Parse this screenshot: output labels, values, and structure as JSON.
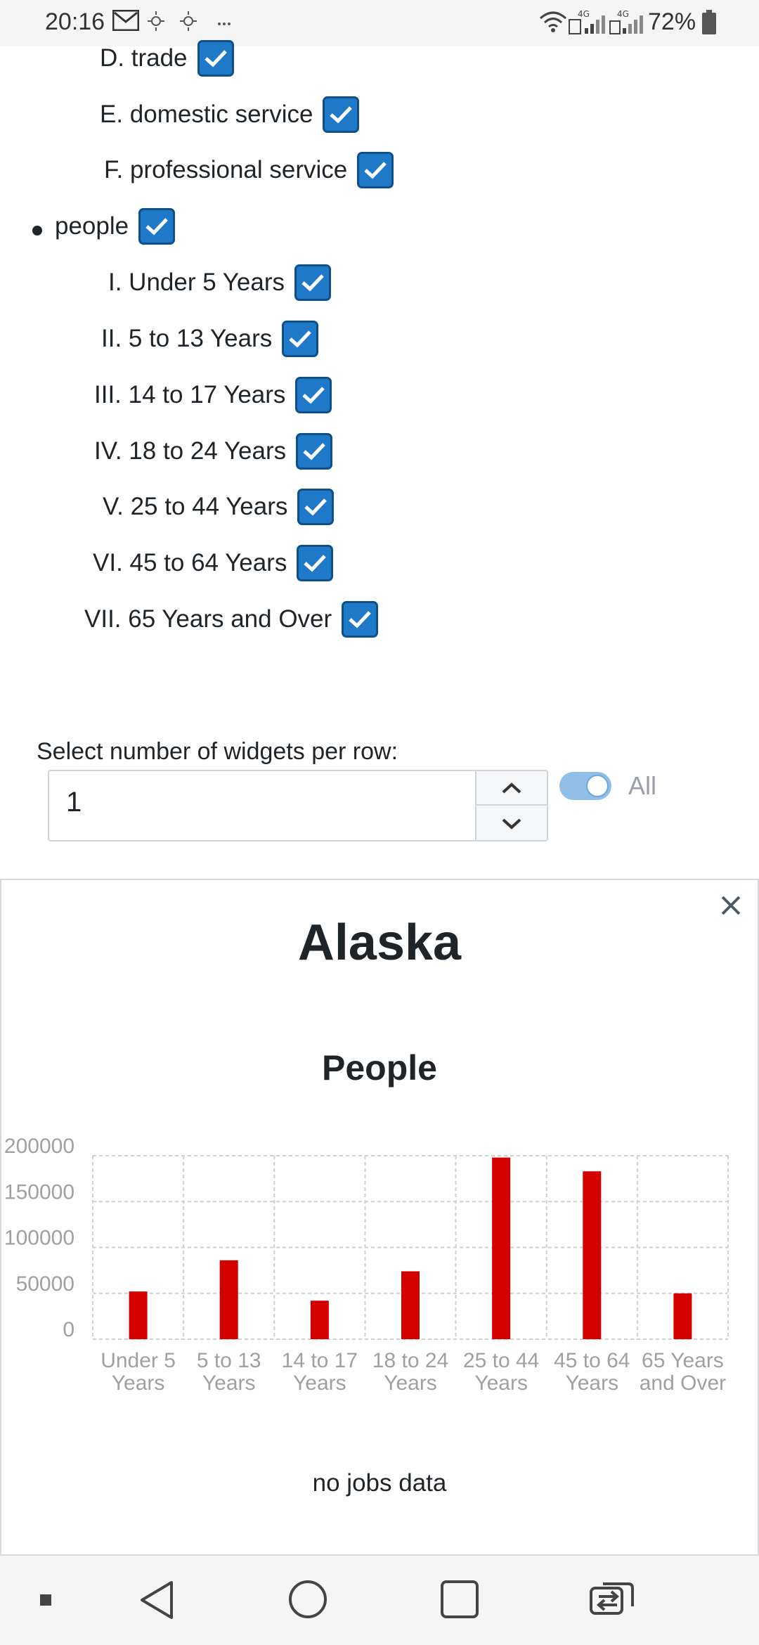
{
  "status_bar": {
    "time": "20:16",
    "battery": "72%",
    "icons": [
      "gmail-icon",
      "brightness-icon",
      "brightness-icon",
      "more-icon",
      "wifi-icon",
      "signal-4g-sim1-icon",
      "signal-4g-sim2-icon",
      "battery-icon"
    ]
  },
  "checklist": {
    "items": [
      {
        "label": "D. trade",
        "checked": true
      },
      {
        "label": "E. domestic service",
        "checked": true
      },
      {
        "label": "F. professional service",
        "checked": true
      }
    ],
    "people": {
      "label": "people",
      "checked": true,
      "items": [
        {
          "label": "I. Under 5 Years",
          "checked": true
        },
        {
          "label": "II. 5 to 13 Years",
          "checked": true
        },
        {
          "label": "III. 14 to 17 Years",
          "checked": true
        },
        {
          "label": "IV. 18 to 24 Years",
          "checked": true
        },
        {
          "label": "V. 25 to 44 Years",
          "checked": true
        },
        {
          "label": "VI. 45 to 64 Years",
          "checked": true
        },
        {
          "label": "VII. 65 Years and Over",
          "checked": true
        }
      ]
    }
  },
  "widgets_per_row": {
    "label": "Select number of widgets per row:",
    "value": "1",
    "toggle_label": "All",
    "toggle_on": true
  },
  "widget": {
    "title": "Alaska",
    "no_jobs_text": "no jobs data"
  },
  "chart_data": {
    "type": "bar",
    "title": "People",
    "categories": [
      [
        "Under 5",
        "Years"
      ],
      [
        "5 to 13",
        "Years"
      ],
      [
        "14 to 17",
        "Years"
      ],
      [
        "18 to 24",
        "Years"
      ],
      [
        "25 to 44",
        "Years"
      ],
      [
        "45 to 64",
        "Years"
      ],
      [
        "65 Years",
        "and Over"
      ]
    ],
    "values": [
      52000,
      86000,
      42000,
      74000,
      198000,
      183000,
      50000
    ],
    "yticks": [
      "200000",
      "150000",
      "100000",
      "50000",
      "0"
    ],
    "ylim": [
      0,
      200000
    ],
    "bar_color": "#d40000",
    "grid": true
  },
  "colors": {
    "checkbox": "#1f78c8",
    "bar": "#d40000",
    "toggle": "#8fbfe6"
  }
}
